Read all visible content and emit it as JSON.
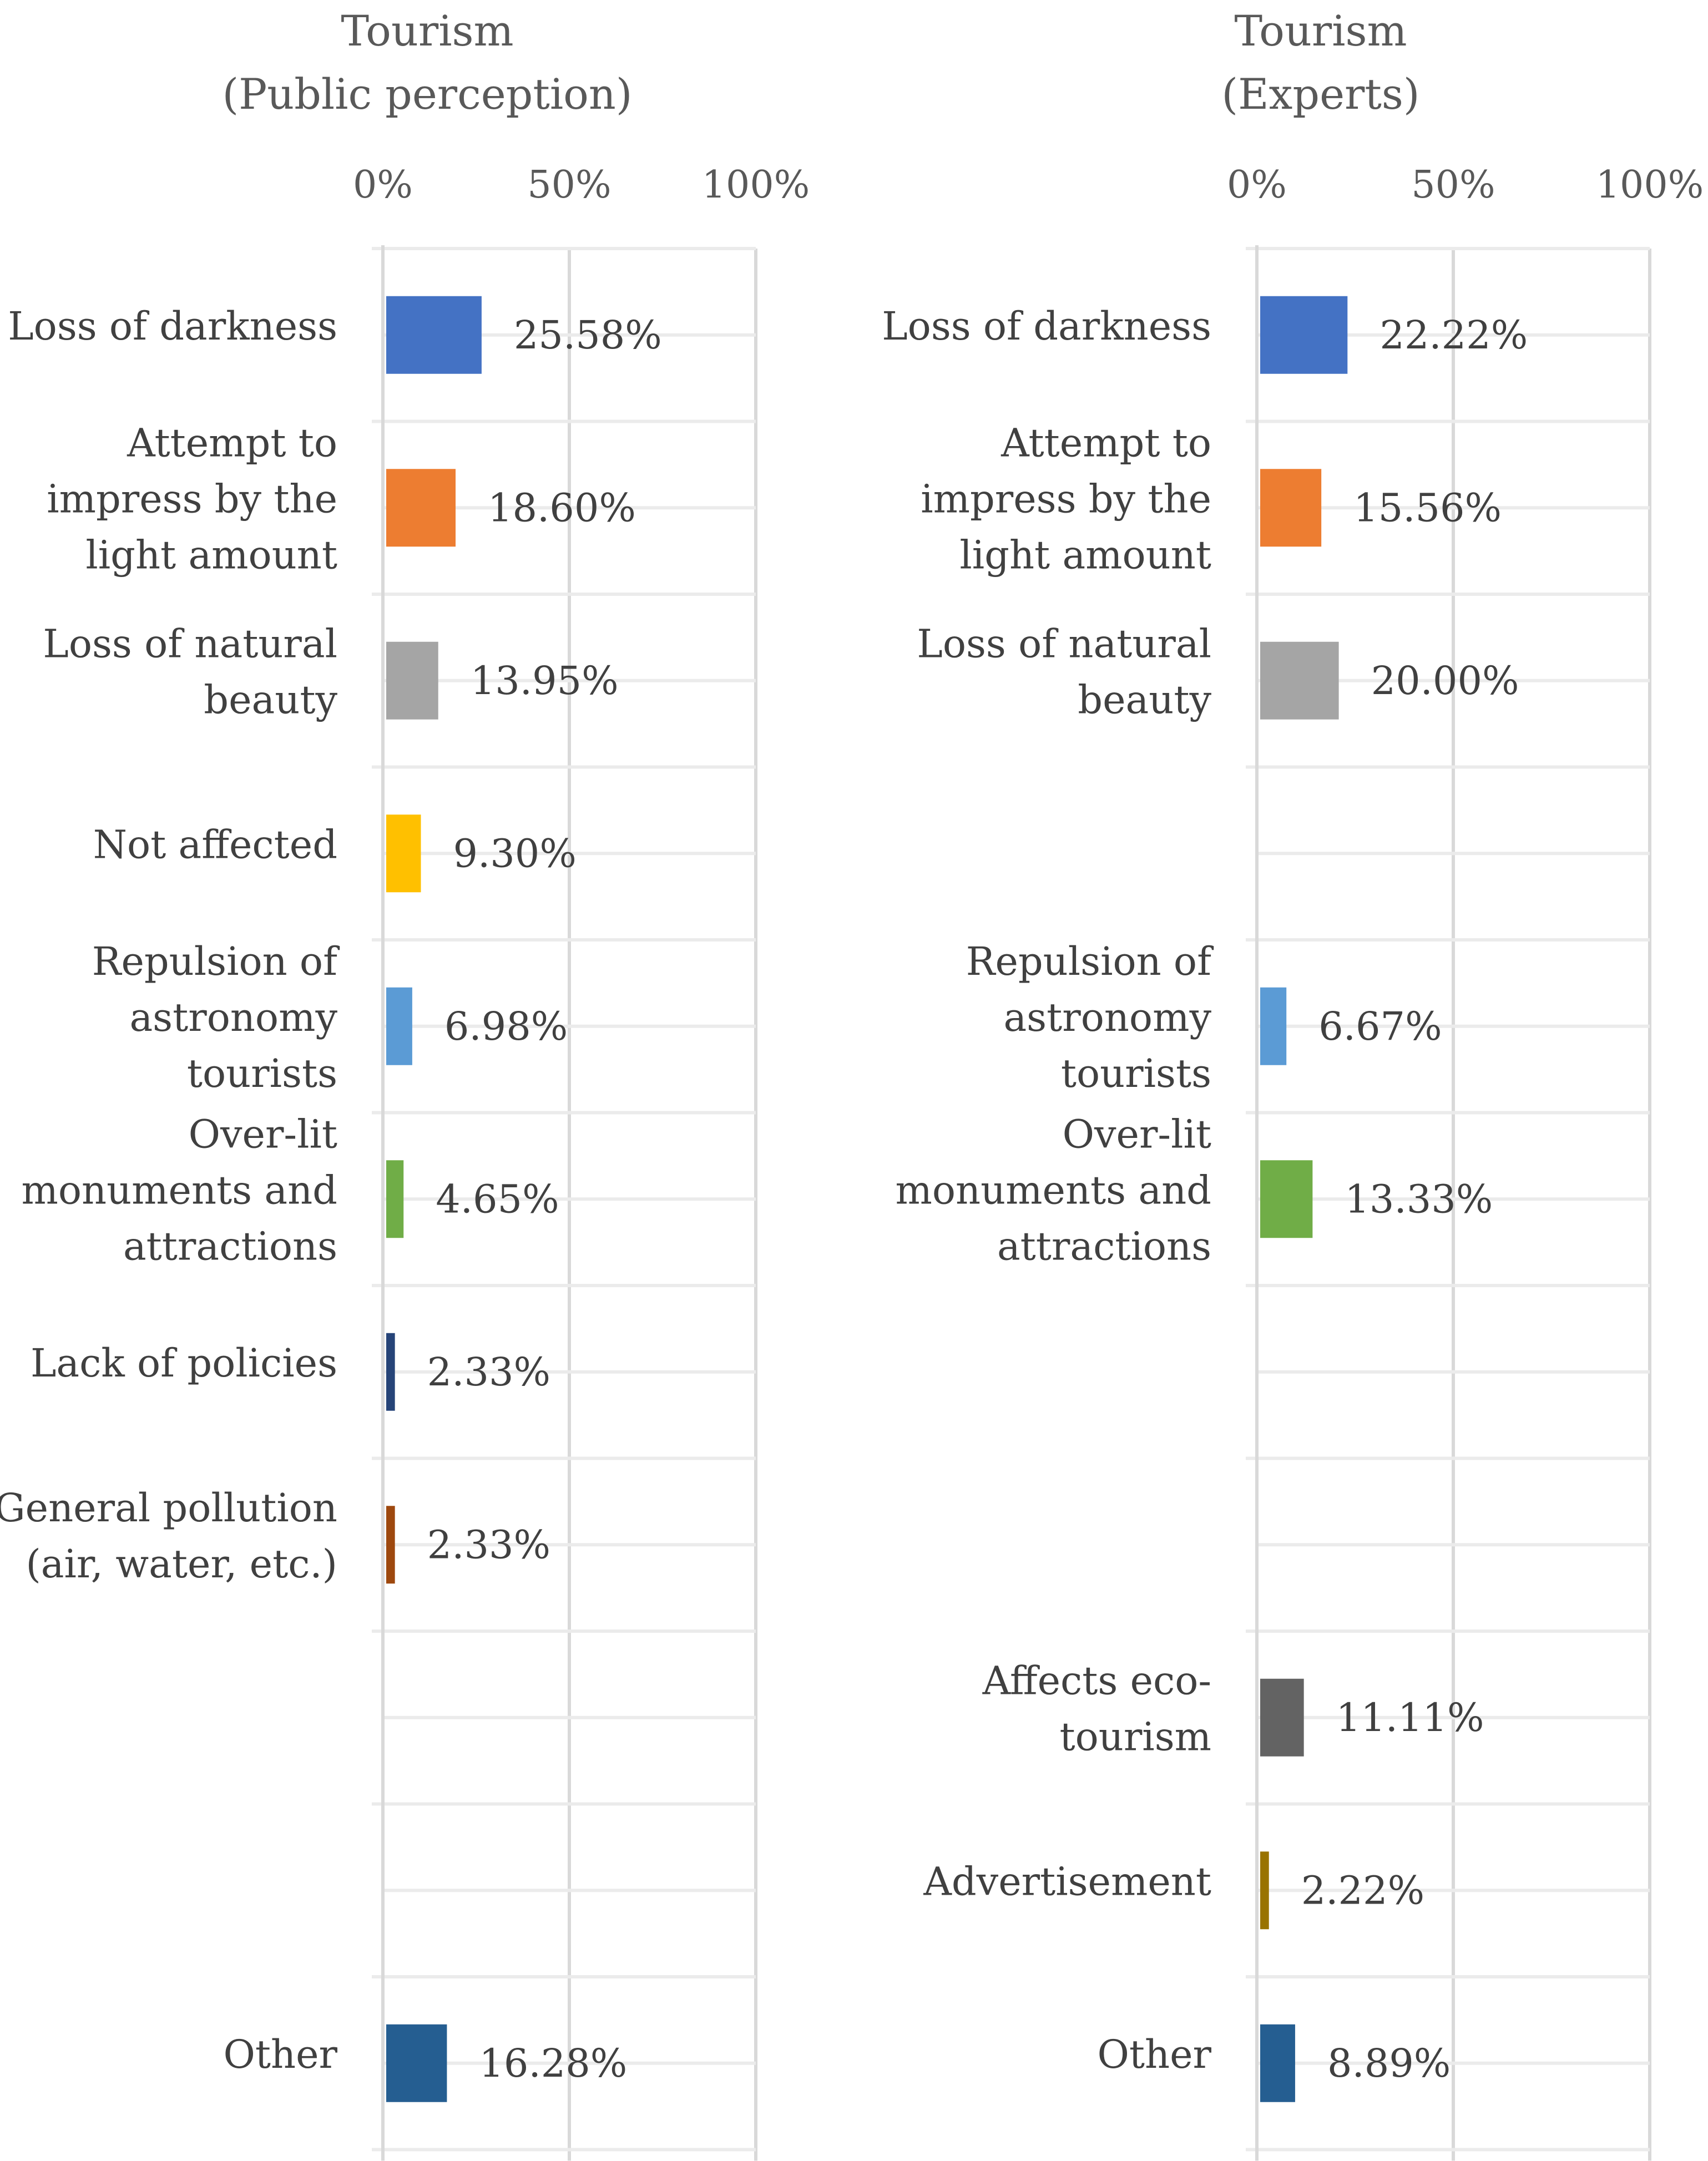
{
  "chart_data": [
    {
      "type": "bar",
      "orientation": "horizontal",
      "title": "Tourism\n(Public perception)",
      "x_ticks": [
        "0%",
        "50%",
        "100%"
      ],
      "xlim": [
        0,
        100
      ],
      "categories": [
        "Loss of darkness",
        "Attempt to impress by the light amount",
        "Loss of natural beauty",
        "Not affected",
        "Repulsion of astronomy tourists",
        "Over-lit monuments and attractions",
        "Lack of policies",
        "General pollution (air, water, etc.)",
        "",
        "",
        "Other"
      ],
      "category_lines": [
        [
          "Loss of darkness"
        ],
        [
          "Attempt to",
          "impress by the",
          "light amount"
        ],
        [
          "Loss of natural",
          "beauty"
        ],
        [
          "Not affected"
        ],
        [
          "Repulsion of",
          "astronomy",
          "tourists"
        ],
        [
          "Over-lit",
          "monuments and",
          "attractions"
        ],
        [
          "Lack of policies"
        ],
        [
          "General pollution",
          "(air, water, etc.)"
        ],
        [],
        [],
        [
          "Other"
        ]
      ],
      "values": [
        25.58,
        18.6,
        13.95,
        9.3,
        6.98,
        4.65,
        2.33,
        2.33,
        null,
        null,
        16.28
      ],
      "value_labels": [
        "25.58%",
        "18.60%",
        "13.95%",
        "9.30%",
        "6.98%",
        "4.65%",
        "2.33%",
        "2.33%",
        "",
        "",
        "16.28%"
      ],
      "colors": [
        "#4472C4",
        "#ED7D31",
        "#A5A5A5",
        "#FFC000",
        "#5B9BD5",
        "#70AD47",
        "#264478",
        "#9E480E",
        "",
        "",
        "#255E91"
      ]
    },
    {
      "type": "bar",
      "orientation": "horizontal",
      "title": "Tourism\n(Experts)",
      "x_ticks": [
        "0%",
        "50%",
        "100%"
      ],
      "xlim": [
        0,
        100
      ],
      "categories": [
        "Loss of darkness",
        "Attempt to impress by the light amount",
        "Loss of natural beauty",
        "",
        "Repulsion of astronomy tourists",
        "Over-lit monuments and attractions",
        "",
        "",
        "Affects eco-tourism",
        "Advertisement",
        "Other"
      ],
      "category_lines": [
        [
          "Loss of darkness"
        ],
        [
          "Attempt to",
          "impress by the",
          "light amount"
        ],
        [
          "Loss of natural",
          "beauty"
        ],
        [],
        [
          "Repulsion of",
          "astronomy",
          "tourists"
        ],
        [
          "Over-lit",
          "monuments and",
          "attractions"
        ],
        [],
        [],
        [
          "Affects eco-",
          "tourism"
        ],
        [
          "Advertisement"
        ],
        [
          "Other"
        ]
      ],
      "values": [
        22.22,
        15.56,
        20.0,
        null,
        6.67,
        13.33,
        null,
        null,
        11.11,
        2.22,
        8.89
      ],
      "value_labels": [
        "22.22%",
        "15.56%",
        "20.00%",
        "",
        "6.67%",
        "13.33%",
        "",
        "",
        "11.11%",
        "2.22%",
        "8.89%"
      ],
      "colors": [
        "#4472C4",
        "#ED7D31",
        "#A5A5A5",
        "",
        "#5B9BD5",
        "#70AD47",
        "",
        "",
        "#636363",
        "#997300",
        "#255E91"
      ]
    }
  ]
}
